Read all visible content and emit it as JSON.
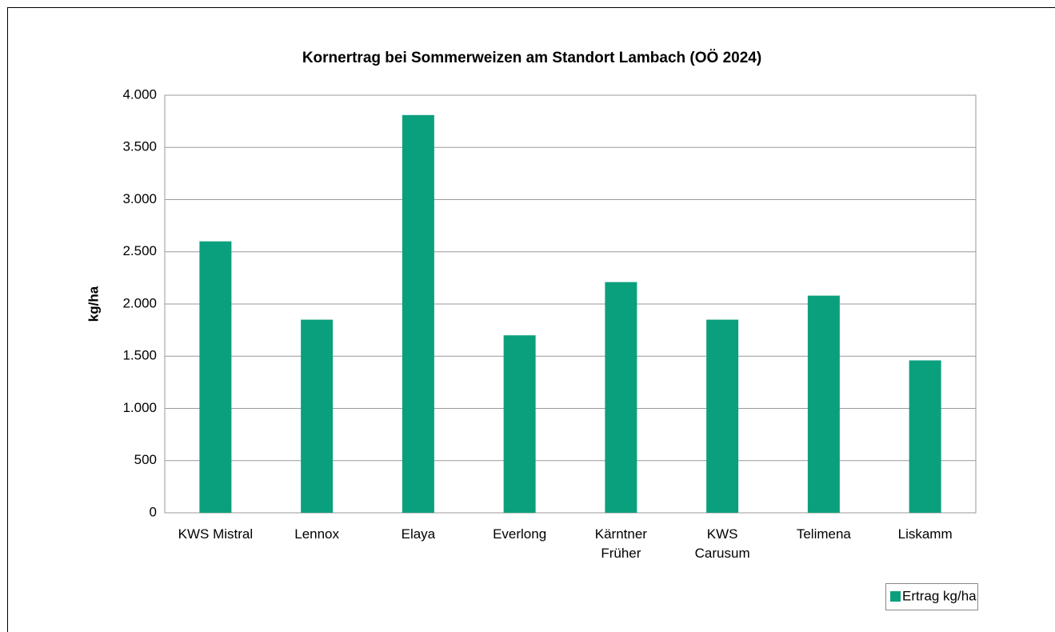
{
  "chart_data": {
    "type": "bar",
    "title": "Kornertrag bei Sommerweizen am Standort Lambach (OÖ 2024)",
    "y_label": "kg/ha",
    "categories": [
      "KWS Mistral",
      "Lennox",
      "Elaya",
      "Everlong",
      "Kärntner\nFrüher",
      "KWS\nCarusum",
      "Telimena",
      "Liskamm"
    ],
    "series": [
      {
        "name": "Ertrag kg/ha",
        "color": "#0ba07d",
        "values": [
          2600,
          1850,
          3810,
          1700,
          2210,
          1850,
          2080,
          1460
        ]
      }
    ],
    "ylim": [
      0,
      4000
    ],
    "yticks": [
      0,
      500,
      {
        "value": 1000,
        "label": "1.000"
      },
      {
        "value": 1500,
        "label": "1.500"
      },
      {
        "value": 2000,
        "label": "2.000"
      },
      {
        "value": 2500,
        "label": "2.500"
      },
      {
        "value": 3000,
        "label": "3.000"
      },
      {
        "value": 3500,
        "label": "3.500"
      },
      {
        "value": 4000,
        "label": "4.000"
      }
    ],
    "grid": true,
    "legend": "bottom-right"
  }
}
